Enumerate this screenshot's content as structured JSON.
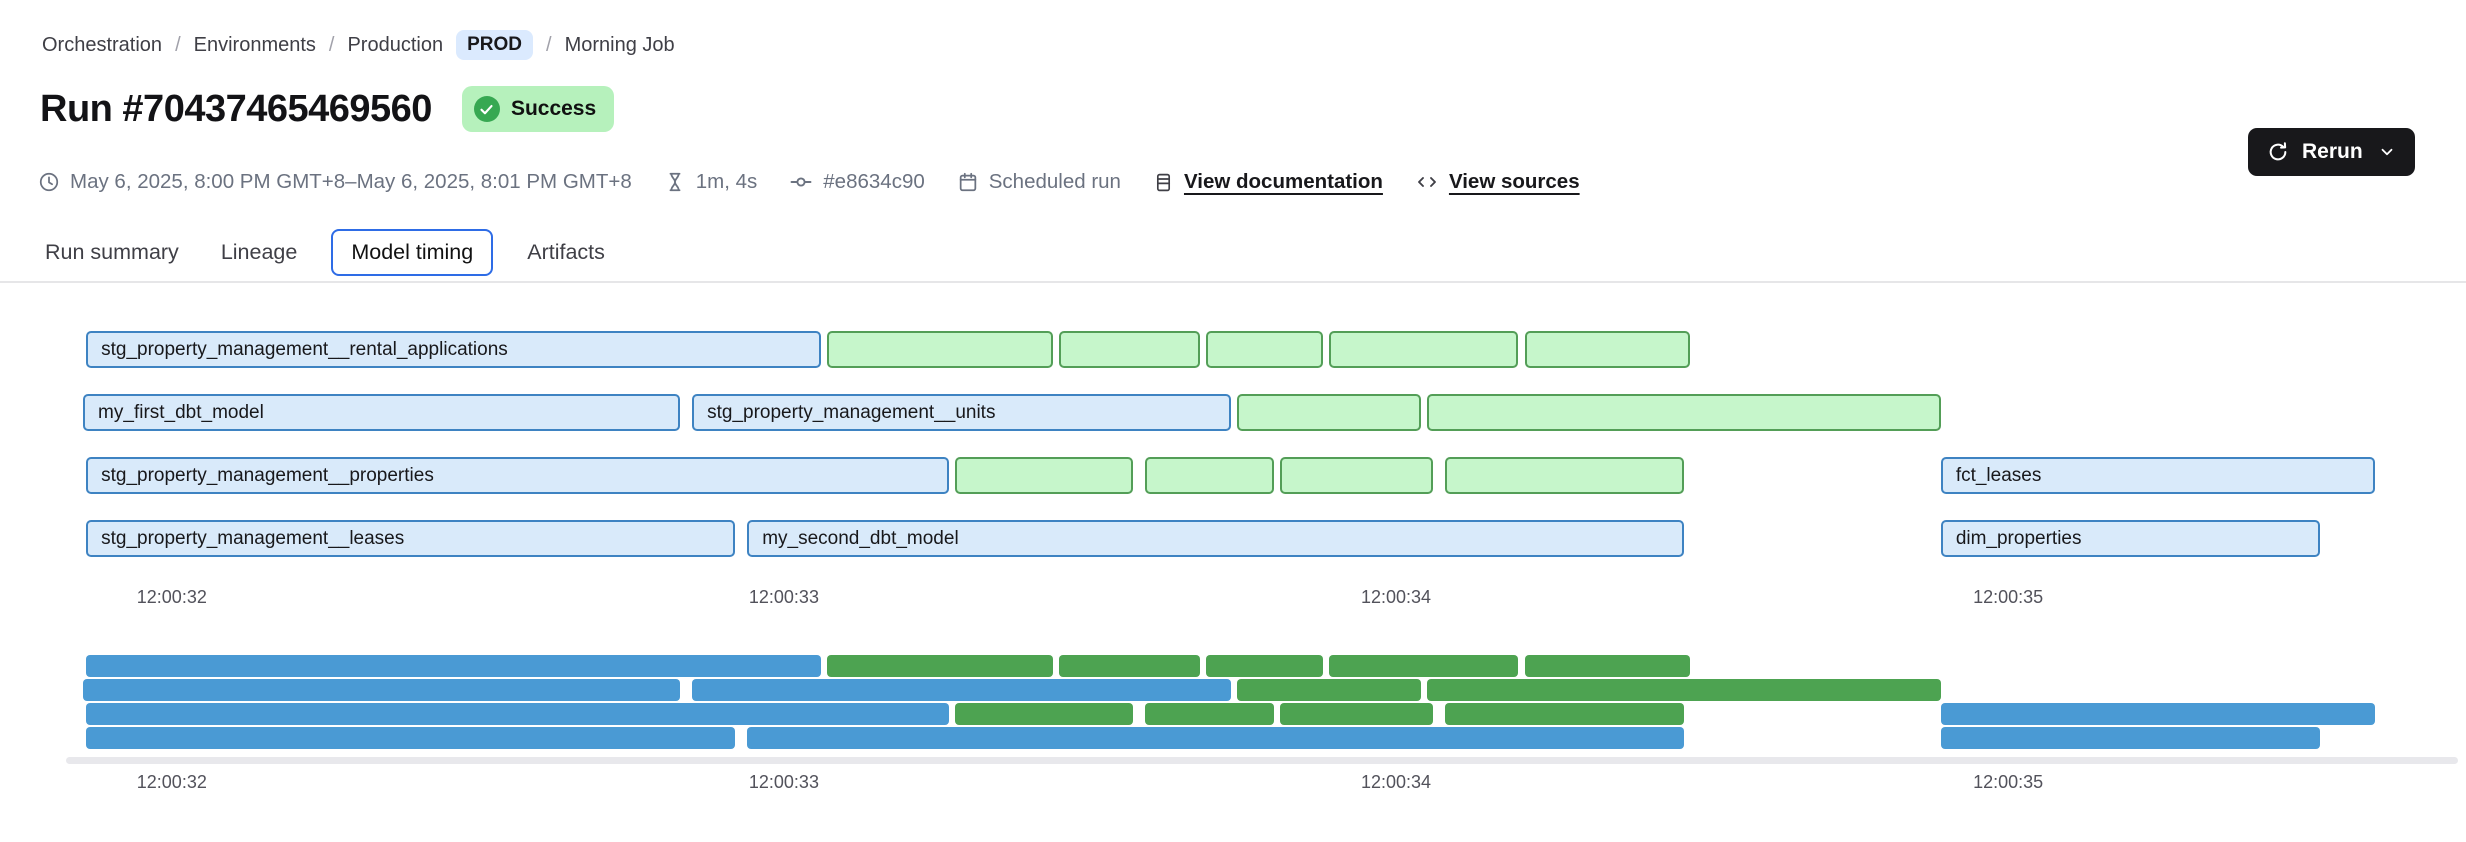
{
  "breadcrumb": {
    "items": [
      {
        "label": "Orchestration"
      },
      {
        "label": "Environments"
      },
      {
        "label": "Production",
        "badge": "PROD"
      },
      {
        "label": "Morning Job"
      }
    ]
  },
  "header": {
    "title": "Run #70437465469560",
    "status": "Success"
  },
  "actions": {
    "rerun": "Rerun"
  },
  "meta": {
    "items": [
      {
        "icon": "clock-icon",
        "text": "May 6, 2025, 8:00 PM GMT+8–May 6, 2025, 8:01 PM GMT+8",
        "link": false
      },
      {
        "icon": "hourglass-icon",
        "text": "1m, 4s",
        "link": false
      },
      {
        "icon": "commit-icon",
        "text": "#e8634c90",
        "link": false
      },
      {
        "icon": "calendar-icon",
        "text": "Scheduled run",
        "link": false
      },
      {
        "icon": "document-icon",
        "text": "View documentation",
        "link": true
      },
      {
        "icon": "code-icon",
        "text": "View sources",
        "link": true
      }
    ]
  },
  "tabs": [
    {
      "label": "Run summary",
      "active": false
    },
    {
      "label": "Lineage",
      "active": false
    },
    {
      "label": "Model timing",
      "active": true
    },
    {
      "label": "Artifacts",
      "active": false
    }
  ],
  "colors": {
    "model_bar_fill": "#d9eafa",
    "model_bar_border": "#3e83c2",
    "test_bar_fill": "#c6f6cb",
    "test_bar_border": "#539e57",
    "minimap_model": "#4a9ad4",
    "minimap_test": "#4da351",
    "active_tab_border": "#2e6ce6",
    "success_badge_bg": "#b6f1bc",
    "success_icon": "#37a852",
    "prod_badge_bg": "#dbeafe",
    "rerun_button_bg": "#18181b",
    "meta_text": "#6b7280",
    "track": "#e8e8ec"
  },
  "chart_data": {
    "type": "gantt",
    "title": "Model timing",
    "time_axis": {
      "min": 31.85,
      "max": 35.73,
      "unit": "seconds after 12:00:00",
      "ticks": [
        {
          "t": 32,
          "label": "12:00:32"
        },
        {
          "t": 33,
          "label": "12:00:33"
        },
        {
          "t": 34,
          "label": "12:00:34"
        },
        {
          "t": 35,
          "label": "12:00:35"
        }
      ]
    },
    "rows": [
      {
        "bars": [
          {
            "label": "stg_property_management__rental_applications",
            "kind": "model",
            "start": 31.86,
            "end": 33.06
          },
          {
            "label": "",
            "kind": "test",
            "start": 33.07,
            "end": 33.44
          },
          {
            "label": "",
            "kind": "test",
            "start": 33.45,
            "end": 33.68
          },
          {
            "label": "",
            "kind": "test",
            "start": 33.69,
            "end": 33.88
          },
          {
            "label": "",
            "kind": "test",
            "start": 33.89,
            "end": 34.2
          },
          {
            "label": "",
            "kind": "test",
            "start": 34.21,
            "end": 34.48
          }
        ]
      },
      {
        "bars": [
          {
            "label": "my_first_dbt_model",
            "kind": "model",
            "start": 31.855,
            "end": 32.83
          },
          {
            "label": "stg_property_management__units",
            "kind": "model",
            "start": 32.85,
            "end": 33.73
          },
          {
            "label": "",
            "kind": "test",
            "start": 33.74,
            "end": 34.04
          },
          {
            "label": "",
            "kind": "test",
            "start": 34.05,
            "end": 34.89
          }
        ]
      },
      {
        "bars": [
          {
            "label": "stg_property_management__properties",
            "kind": "model",
            "start": 31.86,
            "end": 33.27
          },
          {
            "label": "",
            "kind": "test",
            "start": 33.28,
            "end": 33.57
          },
          {
            "label": "",
            "kind": "test",
            "start": 33.59,
            "end": 33.8
          },
          {
            "label": "",
            "kind": "test",
            "start": 33.81,
            "end": 34.06
          },
          {
            "label": "",
            "kind": "test",
            "start": 34.08,
            "end": 34.47
          },
          {
            "label": "fct_leases",
            "kind": "model",
            "start": 34.89,
            "end": 35.6
          }
        ]
      },
      {
        "bars": [
          {
            "label": "stg_property_management__leases",
            "kind": "model",
            "start": 31.86,
            "end": 32.92
          },
          {
            "label": "my_second_dbt_model",
            "kind": "model",
            "start": 32.94,
            "end": 34.47
          },
          {
            "label": "dim_properties",
            "kind": "model",
            "start": 34.89,
            "end": 35.51
          }
        ]
      }
    ]
  }
}
